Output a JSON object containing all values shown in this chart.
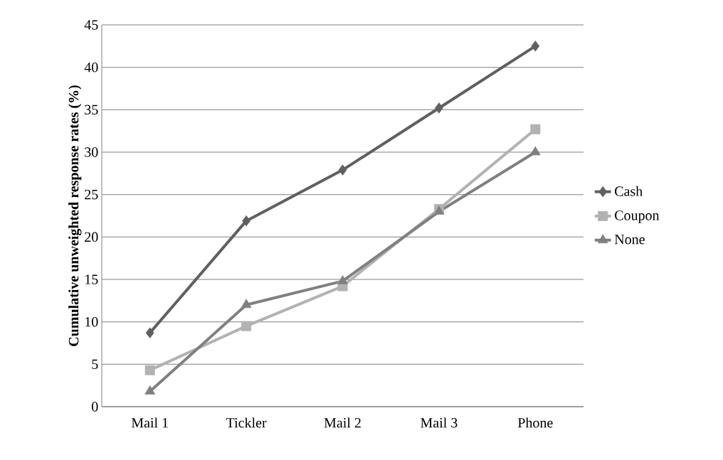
{
  "chart_data": {
    "type": "line",
    "ylabel": "Cumulative unweighted response rates (%)",
    "categories": [
      "Mail 1",
      "Tickler",
      "Mail 2",
      "Mail 3",
      "Phone"
    ],
    "series": [
      {
        "name": "Cash",
        "color": "#606060",
        "marker": "diamond",
        "values": [
          8.7,
          21.9,
          27.9,
          35.2,
          42.5
        ]
      },
      {
        "name": "Coupon",
        "color": "#b2b2b2",
        "marker": "square",
        "values": [
          4.3,
          9.5,
          14.2,
          23.3,
          32.7
        ]
      },
      {
        "name": "None",
        "color": "#808080",
        "marker": "triangle",
        "values": [
          1.8,
          12.0,
          14.8,
          23.0,
          30.0
        ]
      }
    ],
    "ylim": [
      0,
      45
    ],
    "yticks": [
      0,
      5,
      10,
      15,
      20,
      25,
      30,
      35,
      40,
      45
    ],
    "grid": "y",
    "legend": "right",
    "line_style": "solid"
  }
}
